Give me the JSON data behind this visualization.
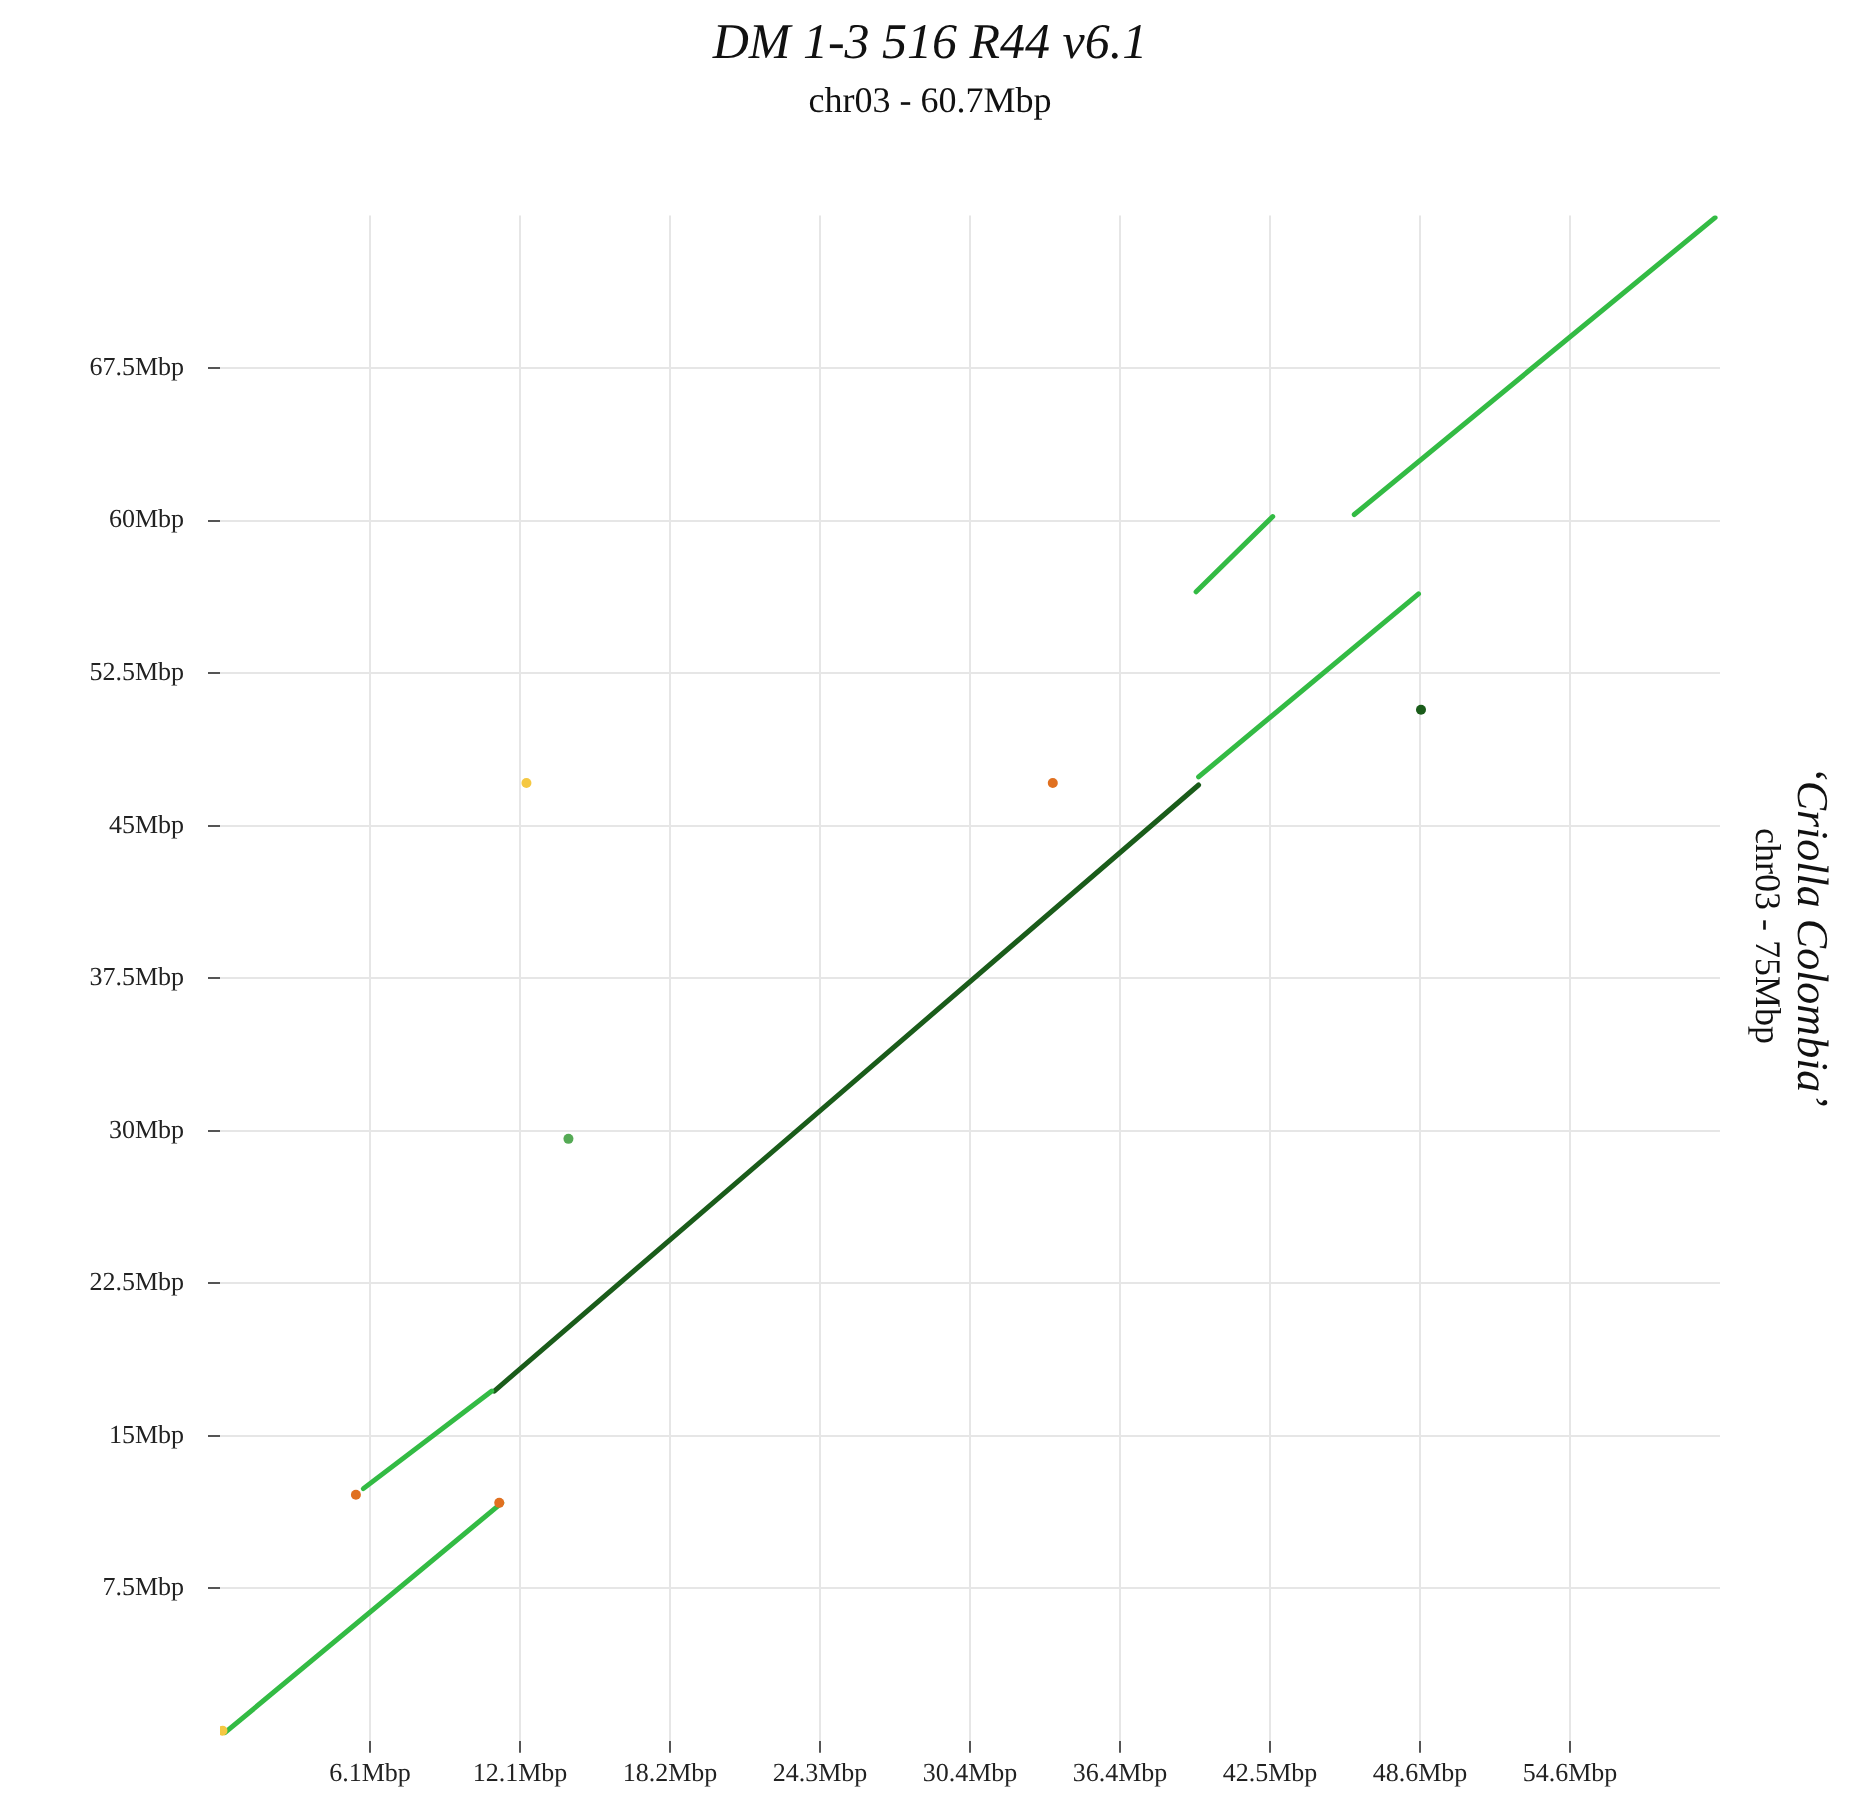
{
  "chart_data": {
    "type": "line",
    "title": "DM 1-3 516 R44 v6.1",
    "xlabel": "chr03 - 60.7Mbp",
    "ylabel": "‘Criolla Colombia’\nchr03 - 75Mbp",
    "xlim": [
      0,
      60.7
    ],
    "ylim": [
      0,
      75
    ],
    "xticks": [
      {
        "value": 6.07,
        "label": "6.1Mbp"
      },
      {
        "value": 12.14,
        "label": "12.1Mbp"
      },
      {
        "value": 18.21,
        "label": "18.2Mbp"
      },
      {
        "value": 24.28,
        "label": "24.3Mbp"
      },
      {
        "value": 30.35,
        "label": "30.4Mbp"
      },
      {
        "value": 36.42,
        "label": "36.4Mbp"
      },
      {
        "value": 42.49,
        "label": "42.5Mbp"
      },
      {
        "value": 48.56,
        "label": "48.6Mbp"
      },
      {
        "value": 54.63,
        "label": "54.6Mbp"
      }
    ],
    "yticks": [
      {
        "value": 7.5,
        "label": "7.5Mbp"
      },
      {
        "value": 15,
        "label": "15Mbp"
      },
      {
        "value": 22.5,
        "label": "22.5Mbp"
      },
      {
        "value": 30,
        "label": "30Mbp"
      },
      {
        "value": 37.5,
        "label": "37.5Mbp"
      },
      {
        "value": 45,
        "label": "45Mbp"
      },
      {
        "value": 52.5,
        "label": "52.5Mbp"
      },
      {
        "value": 60,
        "label": "60Mbp"
      },
      {
        "value": 67.5,
        "label": "67.5Mbp"
      }
    ],
    "grid": true,
    "legend": false,
    "marker": "none",
    "line_style": "solid",
    "series": [
      {
        "color": "#33bb44",
        "x": [
          0.2,
          11.4
        ],
        "values": [
          0.4,
          11.7
        ]
      },
      {
        "color": "#33bb44",
        "x": [
          5.8,
          11.0
        ],
        "values": [
          12.4,
          17.2
        ]
      },
      {
        "color": "#1a5c1a",
        "x": [
          11.1,
          39.6
        ],
        "values": [
          17.2,
          47.0
        ]
      },
      {
        "color": "#33bb44",
        "x": [
          39.6,
          48.5
        ],
        "values": [
          47.4,
          56.4
        ]
      },
      {
        "color": "#33bb44",
        "x": [
          39.5,
          42.6
        ],
        "values": [
          56.5,
          60.2
        ]
      },
      {
        "color": "#33bb44",
        "x": [
          45.9,
          60.5
        ],
        "values": [
          60.3,
          74.9
        ]
      },
      {
        "type": "scatter",
        "marker": "circle",
        "color": "#f5c842",
        "x": [
          0.1,
          12.4
        ],
        "values": [
          0.5,
          47.1
        ]
      },
      {
        "type": "scatter",
        "marker": "circle",
        "color": "#e07020",
        "x": [
          5.5,
          11.3,
          33.7
        ],
        "values": [
          12.1,
          11.7,
          47.1
        ]
      },
      {
        "type": "scatter",
        "marker": "circle",
        "color": "#1a5c1a",
        "x": [
          48.6
        ],
        "values": [
          50.7
        ]
      },
      {
        "type": "scatter",
        "marker": "circle",
        "color": "#55aa55",
        "x": [
          14.1
        ],
        "values": [
          29.6
        ]
      }
    ]
  }
}
